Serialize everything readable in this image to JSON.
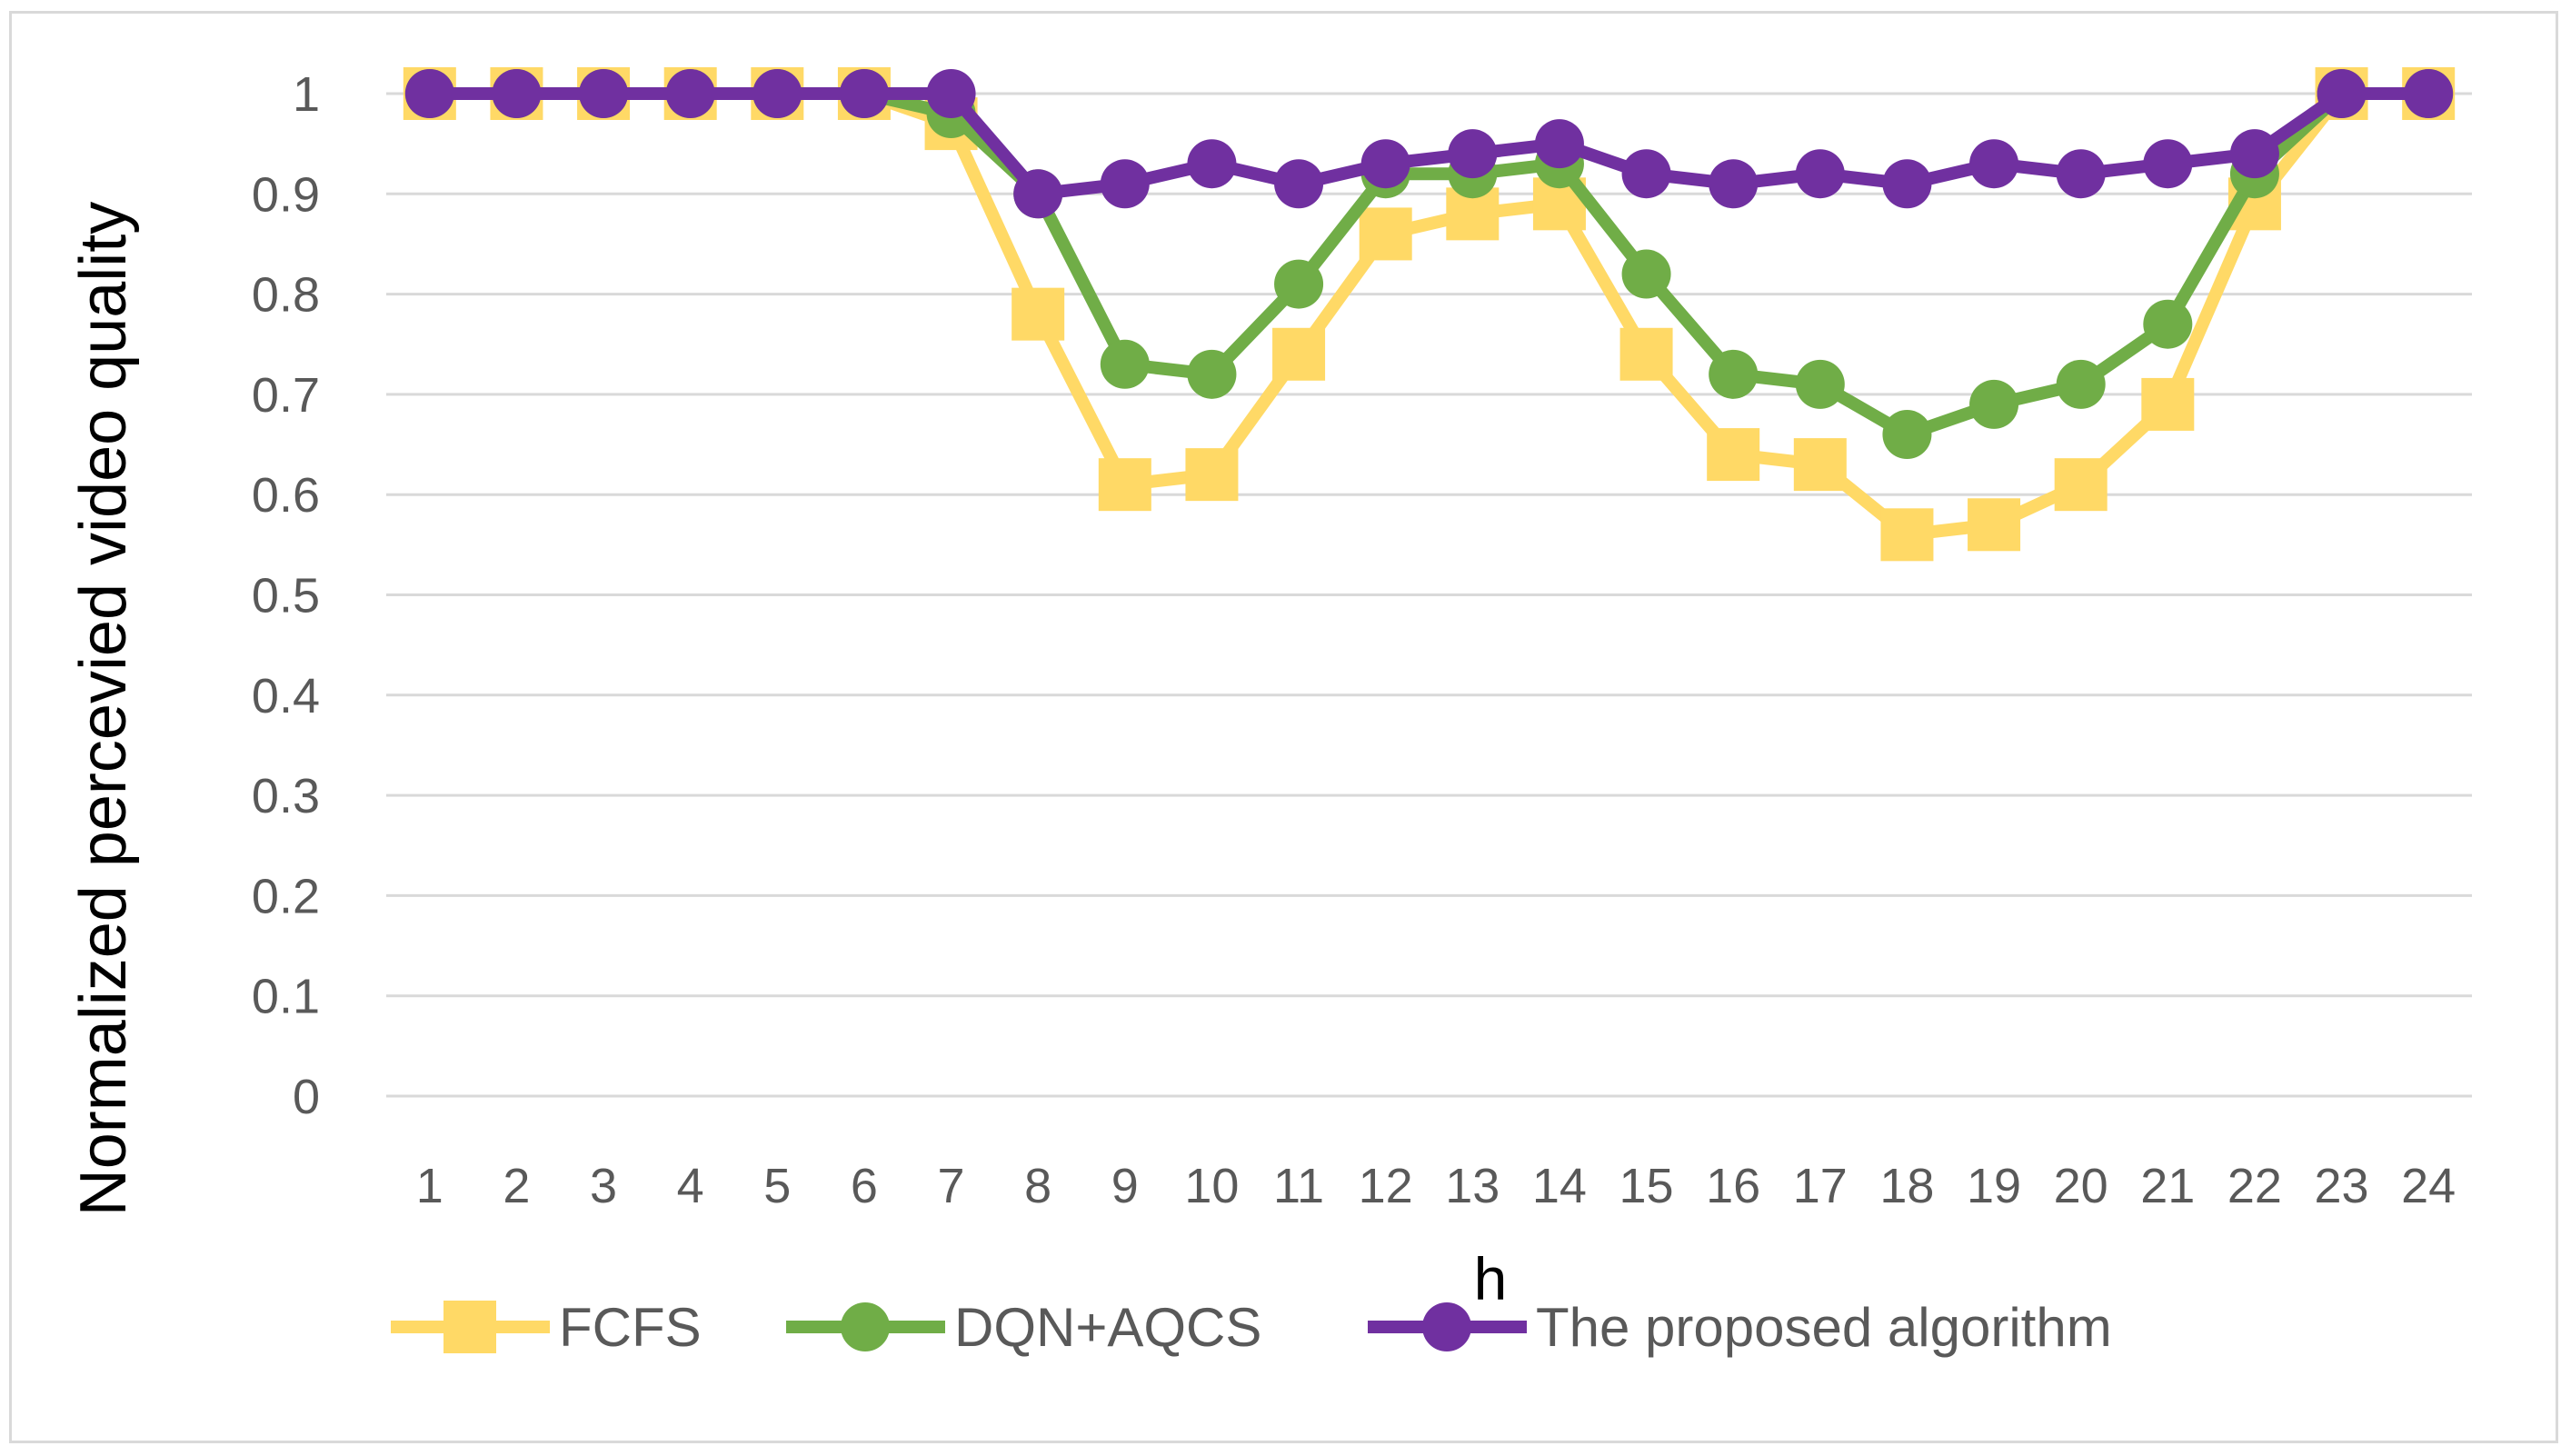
{
  "chart_data": {
    "type": "line",
    "title": "",
    "xlabel": "h",
    "ylabel": "Normalized percevied video quality",
    "ylim": [
      0,
      1
    ],
    "yticks": [
      "0",
      "0.1",
      "0.2",
      "0.3",
      "0.4",
      "0.5",
      "0.6",
      "0.7",
      "0.8",
      "0.9",
      "1"
    ],
    "categories": [
      "1",
      "2",
      "3",
      "4",
      "5",
      "6",
      "7",
      "8",
      "9",
      "10",
      "11",
      "12",
      "13",
      "14",
      "15",
      "16",
      "17",
      "18",
      "19",
      "20",
      "21",
      "22",
      "23",
      "24"
    ],
    "grid": "horizontal",
    "legend_position": "bottom",
    "series": [
      {
        "name": "FCFS",
        "color": "#ffd966",
        "marker": "square",
        "values": [
          1,
          1,
          1,
          1,
          1,
          1,
          0.97,
          0.78,
          0.61,
          0.62,
          0.74,
          0.86,
          0.88,
          0.89,
          0.74,
          0.64,
          0.63,
          0.56,
          0.57,
          0.61,
          0.69,
          0.89,
          1,
          1
        ]
      },
      {
        "name": "DQN+AQCS",
        "color": "#70ad47",
        "marker": "circle",
        "values": [
          1,
          1,
          1,
          1,
          1,
          1,
          0.98,
          0.9,
          0.73,
          0.72,
          0.81,
          0.92,
          0.92,
          0.93,
          0.82,
          0.72,
          0.71,
          0.66,
          0.69,
          0.71,
          0.77,
          0.92,
          1,
          1
        ]
      },
      {
        "name": "The proposed algorithm",
        "color": "#7030a0",
        "marker": "circle",
        "values": [
          1,
          1,
          1,
          1,
          1,
          1,
          1,
          0.9,
          0.91,
          0.93,
          0.91,
          0.93,
          0.94,
          0.95,
          0.92,
          0.91,
          0.92,
          0.91,
          0.93,
          0.92,
          0.93,
          0.94,
          1,
          1
        ]
      }
    ]
  }
}
